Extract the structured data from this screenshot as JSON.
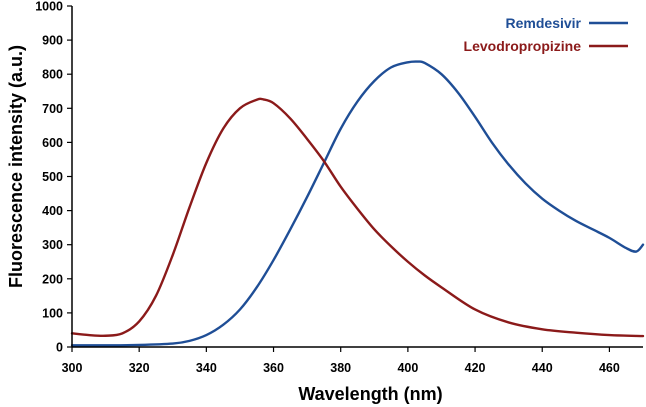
{
  "chart_data": {
    "type": "line",
    "title": "",
    "xlabel": "Wavelength (nm)",
    "ylabel": "Fluorescence intensity (a.u.)",
    "xlim": [
      300,
      470
    ],
    "ylim": [
      0,
      1000
    ],
    "x_ticks": [
      300,
      320,
      340,
      360,
      380,
      400,
      420,
      440,
      460
    ],
    "y_ticks": [
      0,
      100,
      200,
      300,
      400,
      500,
      600,
      700,
      800,
      900,
      1000
    ],
    "grid": false,
    "legend_position": "top-right",
    "series": [
      {
        "name": "Remdesivir",
        "color": "#1f4e96",
        "x": [
          300,
          310,
          320,
          330,
          335,
          340,
          345,
          350,
          355,
          360,
          365,
          370,
          375,
          380,
          385,
          390,
          395,
          400,
          403,
          405,
          410,
          415,
          420,
          425,
          430,
          435,
          440,
          445,
          450,
          455,
          460,
          465,
          468,
          470
        ],
        "y": [
          5,
          5,
          6,
          10,
          18,
          35,
          65,
          110,
          175,
          255,
          345,
          440,
          540,
          640,
          720,
          780,
          820,
          835,
          837,
          833,
          800,
          745,
          675,
          600,
          535,
          480,
          435,
          400,
          370,
          345,
          320,
          290,
          280,
          300
        ]
      },
      {
        "name": "Levodropropizine",
        "color": "#8b1a1a",
        "x": [
          300,
          305,
          310,
          315,
          320,
          325,
          330,
          335,
          340,
          345,
          350,
          355,
          357,
          360,
          365,
          370,
          375,
          380,
          385,
          390,
          395,
          400,
          405,
          410,
          420,
          430,
          440,
          450,
          460,
          470
        ],
        "y": [
          40,
          35,
          33,
          40,
          75,
          150,
          270,
          410,
          540,
          640,
          700,
          725,
          726,
          715,
          670,
          610,
          545,
          470,
          405,
          345,
          295,
          250,
          210,
          175,
          110,
          72,
          52,
          42,
          35,
          32
        ]
      }
    ]
  }
}
